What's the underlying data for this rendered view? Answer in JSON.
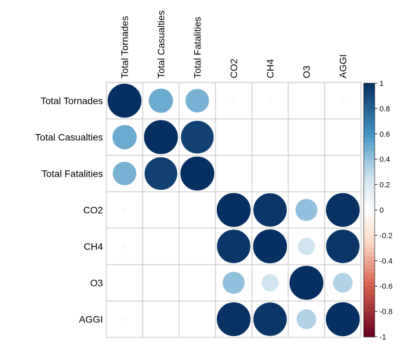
{
  "chart_data": {
    "type": "heatmap",
    "style": "correlation-circles",
    "variables": [
      "Total Tornades",
      "Total Casualties",
      "Total Fatalities",
      "CO2",
      "CH4",
      "O3",
      "AGGI"
    ],
    "matrix": [
      [
        1.0,
        0.5,
        0.47,
        0.03,
        0.03,
        0.0,
        0.03
      ],
      [
        0.5,
        1.0,
        0.93,
        0.01,
        0.01,
        0.01,
        0.01
      ],
      [
        0.47,
        0.93,
        1.0,
        0.0,
        0.0,
        0.0,
        0.0
      ],
      [
        0.03,
        0.01,
        0.0,
        1.0,
        0.97,
        0.41,
        0.99
      ],
      [
        0.03,
        0.01,
        0.0,
        0.97,
        1.0,
        0.25,
        0.97
      ],
      [
        0.0,
        0.01,
        0.0,
        0.41,
        0.25,
        1.0,
        0.33
      ],
      [
        0.03,
        0.01,
        0.0,
        0.99,
        0.97,
        0.33,
        1.0
      ]
    ],
    "colorbar": {
      "range": [
        -1,
        1
      ],
      "ticks": [
        "1",
        "0.8",
        "0.6",
        "0.4",
        "0.2",
        "0",
        "-0.2",
        "-0.4",
        "-0.6",
        "-0.8",
        "-1"
      ],
      "colors": {
        "neg_dark": "#67001F",
        "neg_mid": "#D6604D",
        "neg_light": "#FDDBC7",
        "zero": "#FFFFFF",
        "pos_light": "#D1E5F0",
        "pos_mid": "#4393C3",
        "pos_dark": "#053061"
      }
    },
    "grid": true,
    "grid_color": "#c0c0c0",
    "legend_position": "right"
  }
}
